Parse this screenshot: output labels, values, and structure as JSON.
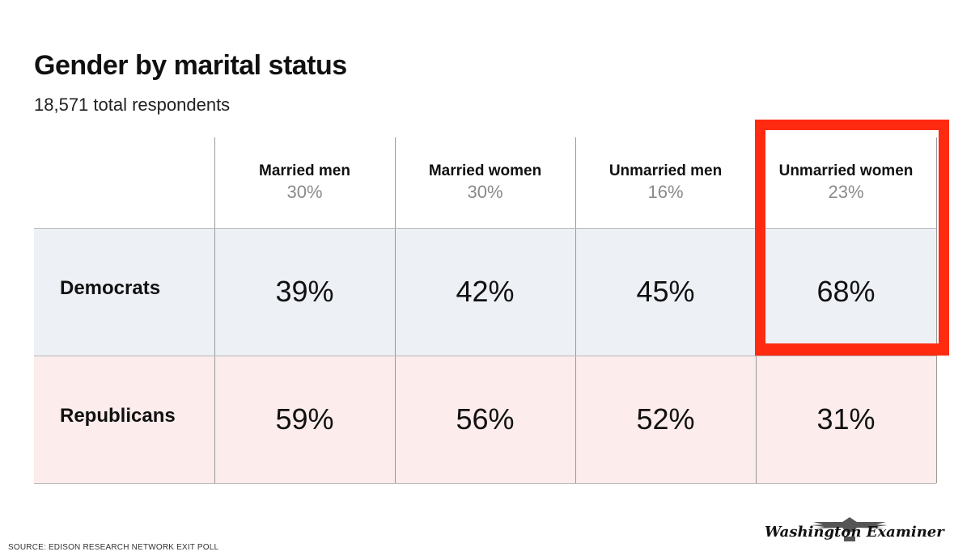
{
  "chart_data": {
    "type": "table",
    "title": "Gender by marital status",
    "subtitle": "18,571 total respondents",
    "columns": [
      {
        "name": "Married men",
        "share": "30%"
      },
      {
        "name": "Married women",
        "share": "30%"
      },
      {
        "name": "Unmarried men",
        "share": "16%"
      },
      {
        "name": "Unmarried women",
        "share": "23%"
      }
    ],
    "rows": [
      {
        "label": "Democrats",
        "values": [
          "39%",
          "42%",
          "45%",
          "68%"
        ]
      },
      {
        "label": "Republicans",
        "values": [
          "59%",
          "56%",
          "52%",
          "31%"
        ]
      }
    ],
    "highlighted_column": "Unmarried women"
  },
  "colors": {
    "democrats_row": "#edf0f5",
    "republicans_row": "#fcecec",
    "highlight_border": "#ff2a10",
    "share_text": "#8a8a8a"
  },
  "footer": {
    "source": "SOURCE: EDISON RESEARCH NETWORK EXIT POLL",
    "logo_text": "Washington Examiner",
    "logo_icon": "eagle-icon"
  }
}
